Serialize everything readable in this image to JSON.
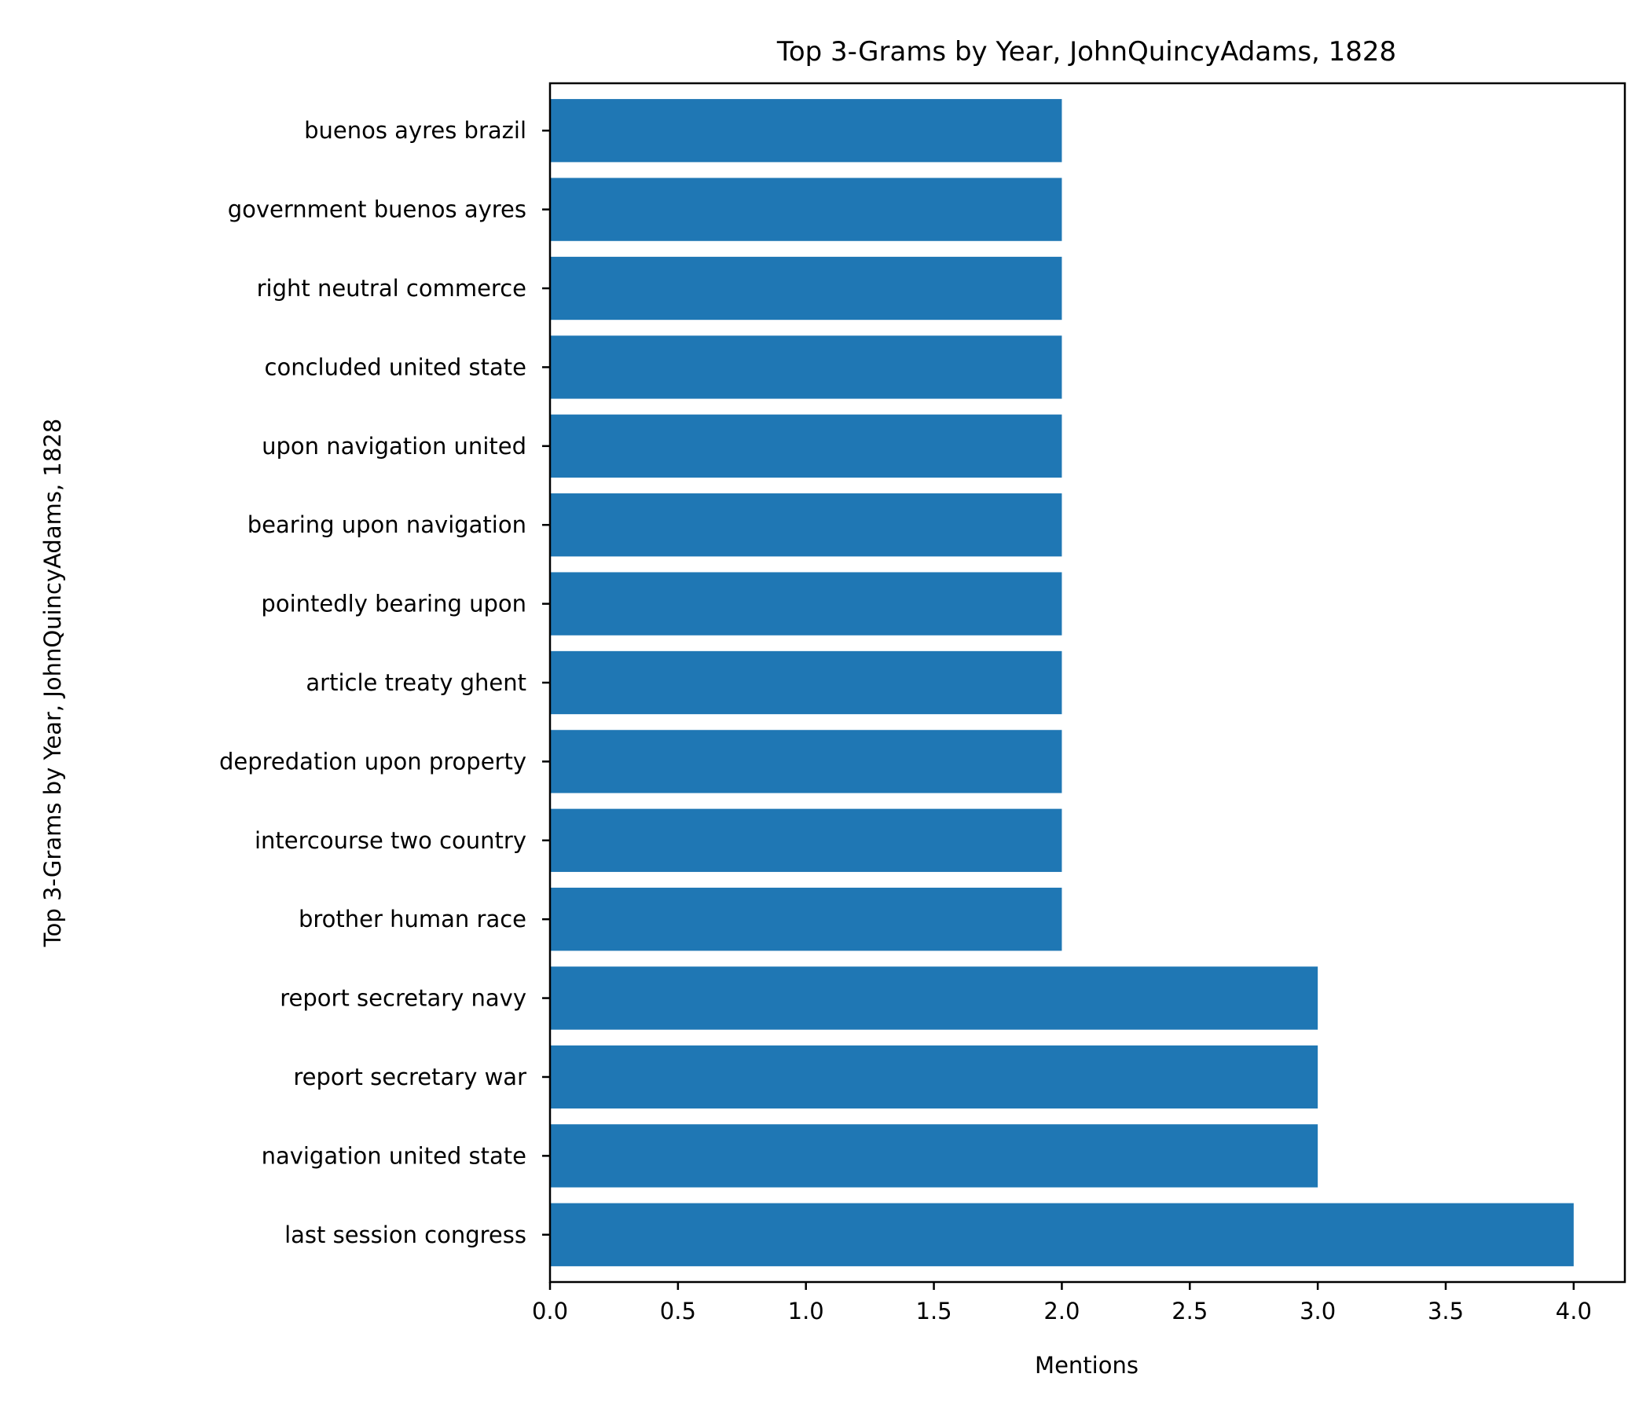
{
  "colors": {
    "bar": "#1f77b4",
    "axis": "#000000",
    "background": "#ffffff"
  },
  "chart_data": {
    "type": "bar",
    "orientation": "horizontal",
    "title": "Top 3-Grams by Year, JohnQuincyAdams, 1828",
    "xlabel": "Mentions",
    "ylabel": "Top 3-Grams by Year, JohnQuincyAdams, 1828",
    "xlim": [
      0,
      4.2
    ],
    "xticks": [
      0.0,
      0.5,
      1.0,
      1.5,
      2.0,
      2.5,
      3.0,
      3.5,
      4.0
    ],
    "xtick_labels": [
      "0.0",
      "0.5",
      "1.0",
      "1.5",
      "2.0",
      "2.5",
      "3.0",
      "3.5",
      "4.0"
    ],
    "grid": false,
    "categories": [
      "last session congress",
      "navigation united state",
      "report secretary war",
      "report secretary navy",
      "brother human race",
      "intercourse two country",
      "depredation upon property",
      "article treaty ghent",
      "pointedly bearing upon",
      "bearing upon navigation",
      "upon navigation united",
      "concluded united state",
      "right neutral commerce",
      "government buenos ayres",
      "buenos ayres brazil"
    ],
    "values": [
      4,
      3,
      3,
      3,
      2,
      2,
      2,
      2,
      2,
      2,
      2,
      2,
      2,
      2,
      2
    ]
  }
}
